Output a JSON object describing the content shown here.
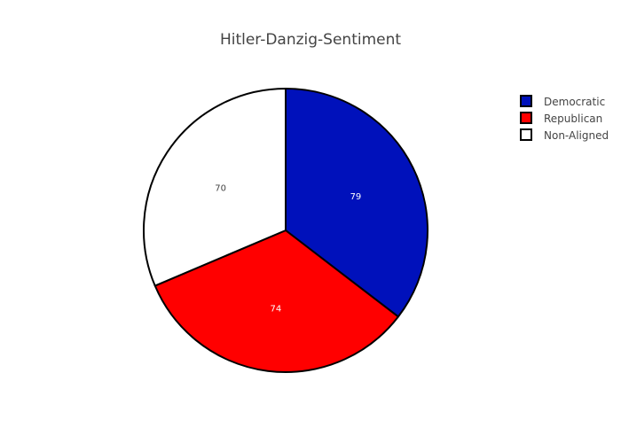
{
  "chart_data": {
    "type": "pie",
    "title": "Hitler-Danzig-Sentiment",
    "slices": [
      {
        "label": "Democratic",
        "value": 79,
        "color": "#0011bb",
        "text_color": "#ffffff"
      },
      {
        "label": "Republican",
        "value": 74,
        "color": "#ff0000",
        "text_color": "#ffffff"
      },
      {
        "label": "Non-Aligned",
        "value": 70,
        "color": "#ffffff",
        "text_color": "#444444"
      }
    ],
    "direction": "clockwise",
    "start": "top",
    "slice_outline_color": "#000000",
    "legend_position": "top-right"
  }
}
